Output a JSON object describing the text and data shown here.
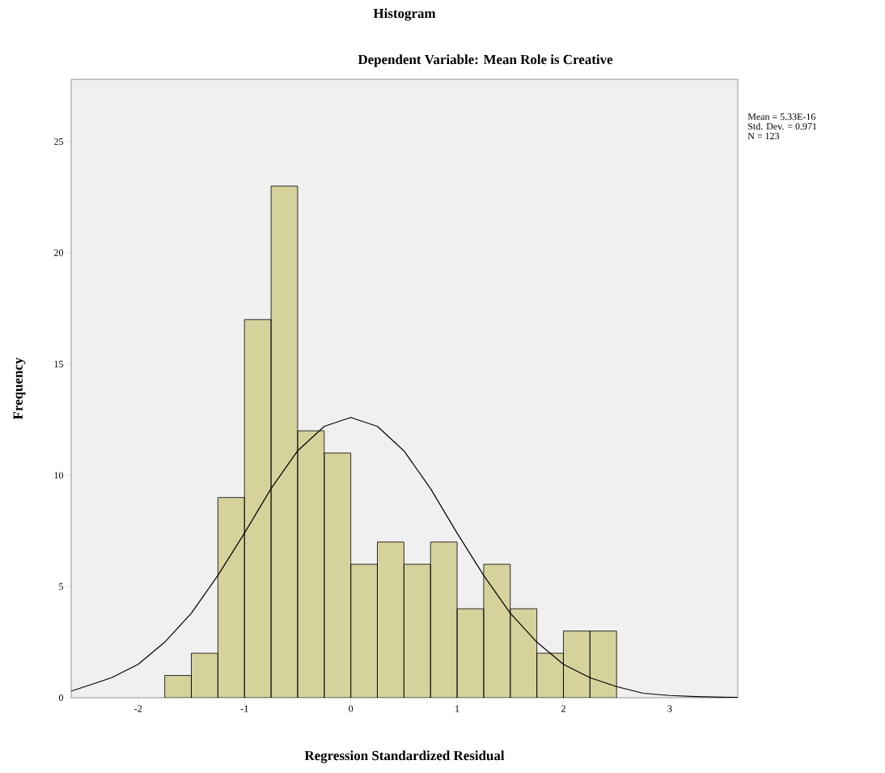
{
  "chart_data": {
    "type": "histogram",
    "title": "Histogram",
    "subtitle": "Dependent Variable: Mean Role is Creative",
    "xlabel": "Regression Standardized Residual",
    "ylabel": "Frequency",
    "bins": [
      -1.75,
      -1.5,
      -1.25,
      -1.0,
      -0.75,
      -0.5,
      -0.25,
      0.0,
      0.25,
      0.5,
      0.75,
      1.0,
      1.25,
      1.5,
      1.75,
      2.0,
      2.25,
      2.5
    ],
    "values": [
      1,
      2,
      9,
      17,
      23,
      12,
      11,
      6,
      7,
      6,
      7,
      4,
      6,
      4,
      2,
      3,
      3
    ],
    "color": "#d6d29c",
    "series": [
      {
        "type": "line",
        "color": "#000000",
        "x": [
          -2.63,
          -2.5,
          -2.25,
          -2.0,
          -1.75,
          -1.5,
          -1.25,
          -1.0,
          -0.75,
          -0.5,
          -0.25,
          0.0,
          0.25,
          0.5,
          0.75,
          1.0,
          1.25,
          1.5,
          1.75,
          2.0,
          2.25,
          2.5,
          2.75,
          3.0,
          3.25,
          3.5,
          3.64
        ],
        "values": [
          0.3,
          0.5,
          0.9,
          1.5,
          2.5,
          3.8,
          5.5,
          7.4,
          9.4,
          11.1,
          12.2,
          12.6,
          12.2,
          11.1,
          9.4,
          7.4,
          5.5,
          3.8,
          2.5,
          1.5,
          0.9,
          0.5,
          0.2,
          0.1,
          0.05,
          0.02,
          0.01
        ]
      }
    ],
    "xlim": [
      -2.63,
      3.64
    ],
    "ylim": [
      0,
      27.8
    ],
    "xticks": [
      -2,
      -1,
      0,
      1,
      2,
      3
    ],
    "yticks": [
      0,
      5,
      10,
      15,
      20,
      25
    ],
    "annotations": [
      "Mean = 5.33E-16",
      "Std. Dev. = 0.971",
      "N = 123"
    ]
  }
}
